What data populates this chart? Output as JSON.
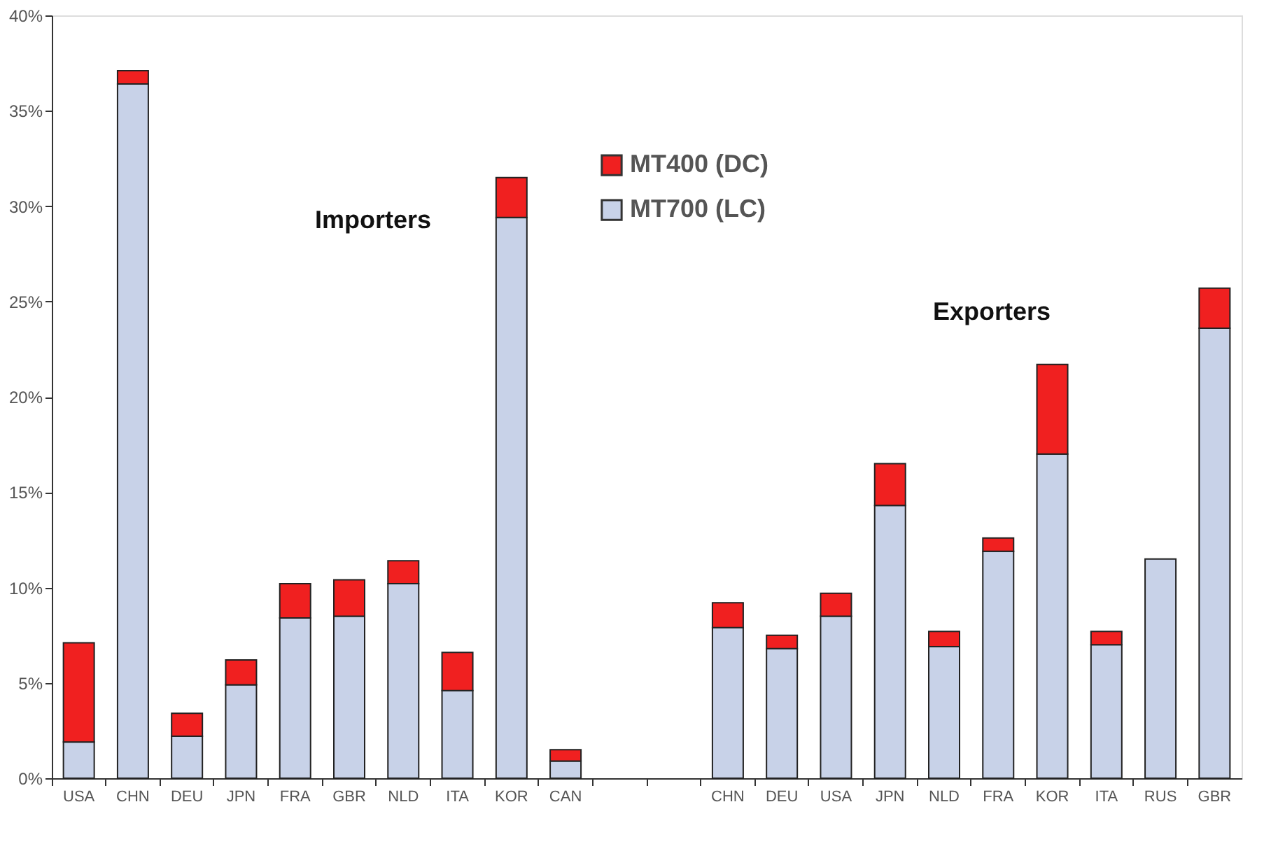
{
  "chart_data": {
    "type": "bar",
    "stacked": true,
    "categories": [
      "USA",
      "CHN",
      "DEU",
      "JPN",
      "FRA",
      "GBR",
      "NLD",
      "ITA",
      "KOR",
      "CAN",
      null,
      null,
      "CHN",
      "DEU",
      "USA",
      "JPN",
      "NLD",
      "FRA",
      "KOR",
      "ITA",
      "RUS",
      "GBR"
    ],
    "series": [
      {
        "name": "MT700 (LC)",
        "color": "#c8d2e8",
        "values": [
          1.9,
          36.4,
          2.2,
          4.9,
          8.4,
          8.5,
          10.2,
          4.6,
          29.4,
          0.9,
          null,
          null,
          7.9,
          6.8,
          8.5,
          14.3,
          6.9,
          11.9,
          17.0,
          7.0,
          11.5,
          23.6
        ]
      },
      {
        "name": "MT400 (DC)",
        "color": "#f02020",
        "values": [
          5.2,
          0.7,
          1.2,
          1.3,
          1.8,
          1.9,
          1.2,
          2.0,
          2.1,
          0.6,
          null,
          null,
          1.3,
          0.7,
          1.2,
          2.2,
          0.8,
          0.7,
          4.7,
          0.7,
          null,
          2.1
        ]
      }
    ],
    "ylim": [
      0,
      40
    ],
    "yticks": [
      {
        "value": 0,
        "label": "0%"
      },
      {
        "value": 5,
        "label": "5%"
      },
      {
        "value": 10,
        "label": "10%"
      },
      {
        "value": 15,
        "label": "15%"
      },
      {
        "value": 20,
        "label": "20%"
      },
      {
        "value": 25,
        "label": "25%"
      },
      {
        "value": 30,
        "label": "30%"
      },
      {
        "value": 35,
        "label": "35%"
      },
      {
        "value": 40,
        "label": "40%"
      }
    ],
    "annotations": [
      "Importers",
      "Exporters"
    ],
    "legend": "top",
    "grid": false
  }
}
